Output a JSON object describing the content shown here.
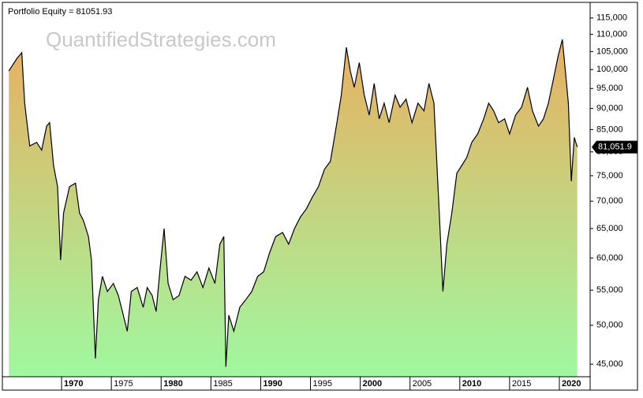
{
  "chart_data": {
    "type": "area",
    "title": "Portfolio Equity = 81051.93",
    "watermark": "QuantifiedStrategies.com",
    "log_scale": true,
    "line_color": "#000000",
    "fill_colors": [
      "#e8b060",
      "#a0f8a0"
    ],
    "x": [
      1964.7,
      1965.5,
      1966.0,
      1966.3,
      1966.8,
      1967.5,
      1968.0,
      1968.5,
      1968.8,
      1969.2,
      1969.6,
      1969.9,
      1970.2,
      1970.8,
      1971.4,
      1971.8,
      1972.2,
      1972.7,
      1973.0,
      1973.4,
      1973.7,
      1974.1,
      1974.6,
      1975.2,
      1975.7,
      1976.2,
      1976.6,
      1977.0,
      1977.6,
      1978.2,
      1978.6,
      1979.1,
      1979.5,
      1979.9,
      1980.3,
      1980.7,
      1981.2,
      1981.8,
      1982.4,
      1983.0,
      1983.6,
      1984.2,
      1984.8,
      1985.4,
      1985.9,
      1986.3,
      1986.5,
      1986.8,
      1987.3,
      1987.9,
      1988.5,
      1989.1,
      1989.7,
      1990.3,
      1990.9,
      1991.5,
      1992.2,
      1992.8,
      1993.4,
      1994.0,
      1994.6,
      1995.2,
      1995.8,
      1996.4,
      1997.0,
      1997.6,
      1998.1,
      1998.6,
      1999.0,
      1999.4,
      1999.9,
      2000.4,
      2000.9,
      2001.4,
      2001.9,
      2002.4,
      2002.9,
      2003.5,
      2004.0,
      2004.6,
      2005.2,
      2005.8,
      2006.4,
      2006.9,
      2007.4,
      2007.9,
      2008.3,
      2008.7,
      2009.2,
      2009.7,
      2010.2,
      2010.7,
      2011.2,
      2011.8,
      2012.4,
      2012.9,
      2013.4,
      2013.9,
      2014.5,
      2015.0,
      2015.6,
      2016.2,
      2016.8,
      2017.3,
      2017.9,
      2018.4,
      2018.9,
      2019.4,
      2019.9,
      2020.3,
      2020.6,
      2020.9,
      2021.2,
      2021.5,
      2021.8
    ],
    "values": [
      99600,
      103000,
      104700,
      91300,
      81300,
      82100,
      80400,
      85800,
      86600,
      77100,
      72800,
      59700,
      67800,
      72800,
      73500,
      67800,
      66400,
      63600,
      59700,
      45700,
      53600,
      57100,
      54800,
      56000,
      54200,
      51400,
      49200,
      54800,
      55400,
      52500,
      55400,
      54200,
      51900,
      58400,
      65000,
      56000,
      53600,
      54200,
      57100,
      56500,
      57800,
      55400,
      58400,
      56000,
      62300,
      63600,
      44700,
      51400,
      49200,
      52500,
      53600,
      54800,
      57100,
      57800,
      60900,
      63600,
      64300,
      62300,
      65000,
      67100,
      68600,
      70800,
      72800,
      76300,
      78000,
      85800,
      93300,
      106200,
      99600,
      95300,
      101900,
      93300,
      88400,
      96300,
      87500,
      91300,
      86600,
      93300,
      90300,
      92300,
      86600,
      91300,
      89400,
      96300,
      91300,
      69300,
      54800,
      62300,
      67800,
      75500,
      77100,
      78800,
      82100,
      84000,
      87500,
      91300,
      89400,
      86600,
      87500,
      84000,
      88400,
      90300,
      95300,
      89400,
      85800,
      87500,
      91300,
      97400,
      104000,
      108500,
      99600,
      91300,
      73900,
      83200,
      81051.93
    ],
    "current_value": {
      "value": 81051.93,
      "label": "81,051.9"
    },
    "xlim": [
      1964.45,
      2023.09
    ],
    "xticks": [
      1970,
      1975,
      1980,
      1985,
      1990,
      1995,
      2000,
      2005,
      2010,
      2015,
      2020
    ],
    "ylim": [
      43500,
      118700
    ],
    "yticks": [
      {
        "value": 45000,
        "label": "45,000"
      },
      {
        "value": 50000,
        "label": "50,000"
      },
      {
        "value": 55000,
        "label": "55,000"
      },
      {
        "value": 60000,
        "label": "60,000"
      },
      {
        "value": 65000,
        "label": "65,000"
      },
      {
        "value": 70000,
        "label": "70,000"
      },
      {
        "value": 75000,
        "label": "75,000"
      },
      {
        "value": 80000,
        "label": "80,000"
      },
      {
        "value": 85000,
        "label": "85,000"
      },
      {
        "value": 90000,
        "label": "90,000"
      },
      {
        "value": 95000,
        "label": "95,000"
      },
      {
        "value": 100000,
        "label": "100,000"
      },
      {
        "value": 105000,
        "label": "105,000"
      },
      {
        "value": 110000,
        "label": "110,000"
      },
      {
        "value": 115000,
        "label": "115,000"
      }
    ]
  }
}
